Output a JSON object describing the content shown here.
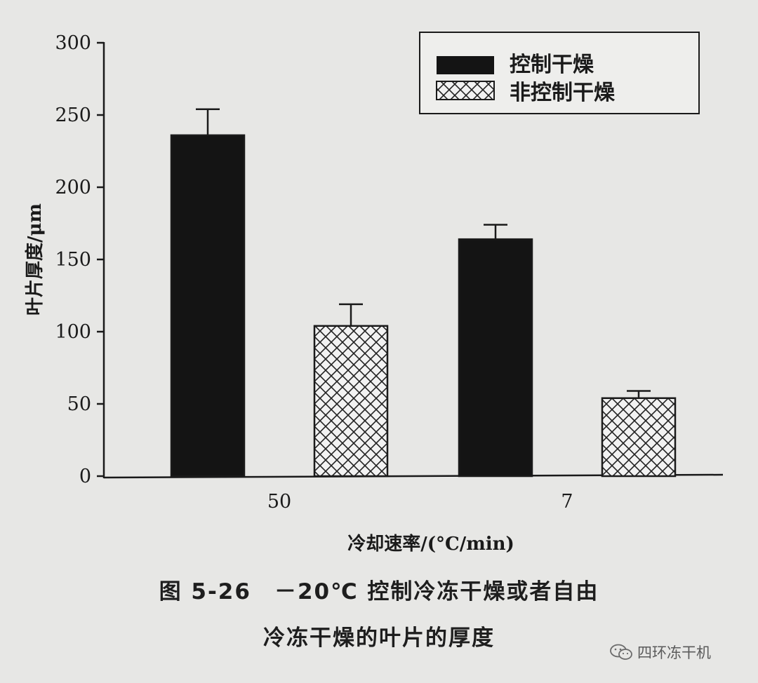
{
  "chart_data": {
    "type": "bar",
    "categories": [
      "50",
      "7"
    ],
    "series": [
      {
        "name": "控制干燥",
        "values": [
          236,
          164
        ],
        "error": [
          18,
          10
        ],
        "fill": "solid"
      },
      {
        "name": "非控制干燥",
        "values": [
          104,
          54
        ],
        "error": [
          15,
          5
        ],
        "fill": "crosshatch"
      }
    ],
    "title": "",
    "xlabel": "冷却速率/(°C/min)",
    "ylabel": "叶片厚度/μm",
    "ylim": [
      0,
      300
    ],
    "yticks": [
      0,
      50,
      100,
      150,
      200,
      250,
      300
    ],
    "legend_position": "top-right",
    "grid": false,
    "colors": {
      "solid": "#141414",
      "hatch_bg": "#f2f2f2",
      "axis": "#1a1a1a"
    }
  },
  "caption": {
    "line1": "图 5-26　－20℃ 控制冷冻干燥或者自由",
    "line2": "冷冻干燥的叶片的厚度"
  },
  "watermark": {
    "text": "四环冻干机",
    "icon": "wechat-icon"
  }
}
